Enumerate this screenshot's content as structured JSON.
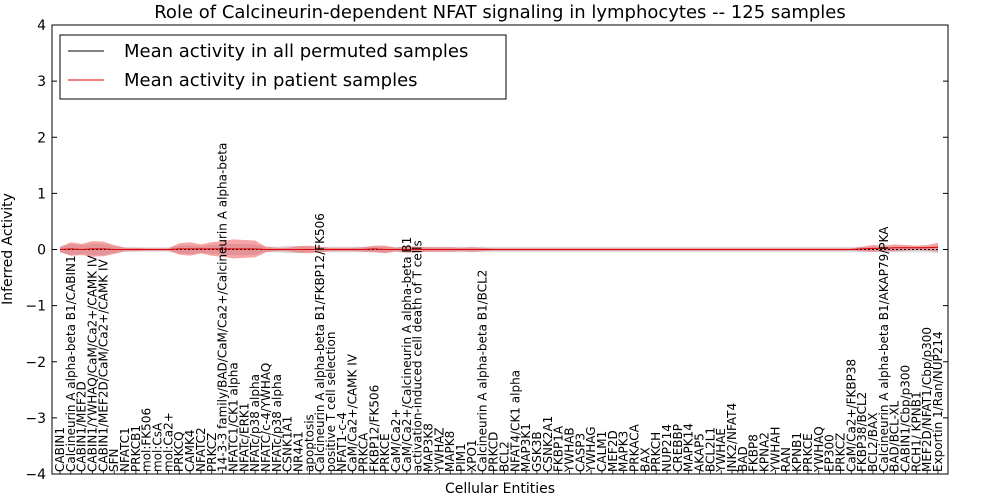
{
  "chart_data": {
    "type": "line",
    "title": "Role of Calcineurin-dependent NFAT signaling in lymphocytes -- 125 samples",
    "xlabel": "Cellular Entities",
    "ylabel": "Inferred Activity",
    "ylim": [
      -4,
      4
    ],
    "yticks": [
      "−4",
      "−3",
      "−2",
      "−1",
      "0",
      "1",
      "2",
      "3",
      "4"
    ],
    "grid": false,
    "legend": {
      "placement": "top-left",
      "entries": [
        {
          "label": "Mean activity in all permuted samples",
          "color": "#000000"
        },
        {
          "label": "Mean activity in patient samples",
          "color": "#e00000"
        }
      ]
    },
    "categories": [
      "CABIN1",
      "Calcineurin A alpha-beta B1/CABIN1",
      "CABIN1/MEF2D",
      "CABIN1/YWHAQ/CaM/Ca2+/CAMK IV",
      "CABIN1/MEF2D/CaM/Ca2+/CAMK IV",
      "SFN",
      "NFATC1",
      "PRKCB1",
      "mol:FK506",
      "mol:CsA",
      "mol:Ca2+",
      "PRKCQ",
      "CAMK4",
      "NFATC2",
      "PRKCZ",
      "14-3-3 family/BAD/CaM/Ca2+/Calcineurin A alpha-beta",
      "NFATC1/CK1 alpha",
      "NFATc/ERK1",
      "NFATc/p38 alpha",
      "NFATC/c-4/YWHAQ",
      "NFATc/p38 alpha",
      "CSNK1A1",
      "NR4A1",
      "apoptosis",
      "Calcineurin A alpha-beta B1/FKBP12/FK506",
      "positive T cell selection",
      "NFAT1-c-4",
      "CaM/Ca2+/CAMK IV",
      "PRKCA",
      "FKBP12/FK506",
      "PRKCE",
      "CaM/Ca2+",
      "CaM/Ca2+/Calcineurin A alpha-beta B1",
      "activation-induced cell death of T cells",
      "MAP3K8",
      "YWHAZ",
      "MAPK8",
      "PIM1",
      "XPO1",
      "Calcineurin A alpha-beta B1/BCL2",
      "PRKCD",
      "BCL2",
      "NFAT4/CK1 alpha",
      "MAP3K1",
      "GSK3B",
      "CSNK2A1",
      "FKBP1A",
      "YWHAB",
      "CASP3",
      "YWHAG",
      "CALM1",
      "MEF2D",
      "MAPK3",
      "PRKACA",
      "BAX",
      "PRKCH",
      "NUP214",
      "CREBBP",
      "MAPK14",
      "AKAP5",
      "BCL2L1",
      "YWHAE",
      "JNK2/NFAT4",
      "BAD",
      "FKBP8",
      "KPNA2",
      "YWHAH",
      "RAN",
      "KPNB1",
      "PRKCE",
      "YWHAQ",
      "EP300",
      "PRKCZ",
      "CaM/Ca2+/FKBP38",
      "FKBP38/BCL2",
      "BCL2/BAX",
      "Calcineurin A alpha-beta B1/AKAP79/PKA",
      "BAD/BCL-XL",
      "CABIN1/Cbp/p300",
      "RCH1/ KPNB1",
      "MEF2D/NFAT1/Cbp/p300",
      "Exportin 1/Ran/NUP214"
    ],
    "patient_mean": [
      0.0,
      0.01,
      0.0,
      0.01,
      0.01,
      0.0,
      0.0,
      0.0,
      0.0,
      0.0,
      0.0,
      0.01,
      0.01,
      0.01,
      0.01,
      0.01,
      0.01,
      0.01,
      0.01,
      0.0,
      0.0,
      0.0,
      0.0,
      0.0,
      0.0,
      0.0,
      0.0,
      0.0,
      0.0,
      0.01,
      0.0,
      0.0,
      0.0,
      0.0,
      0.0,
      0.0,
      0.0,
      0.0,
      0.0,
      0.0,
      0.0,
      0.0,
      0.0,
      0.0,
      0.0,
      0.0,
      0.0,
      0.0,
      0.0,
      0.0,
      0.0,
      0.0,
      0.0,
      0.0,
      0.0,
      0.0,
      0.0,
      0.0,
      0.0,
      0.0,
      0.0,
      0.0,
      0.0,
      0.0,
      0.0,
      0.0,
      0.0,
      0.0,
      0.0,
      0.0,
      0.0,
      0.0,
      0.0,
      0.0,
      0.01,
      0.02,
      0.02,
      0.03,
      0.03,
      0.03,
      0.03,
      0.04,
      0.04
    ],
    "patient_band": [
      0.04,
      0.12,
      0.1,
      0.14,
      0.13,
      0.08,
      0.03,
      0.03,
      0.02,
      0.02,
      0.02,
      0.1,
      0.12,
      0.08,
      0.12,
      0.14,
      0.17,
      0.16,
      0.15,
      0.05,
      0.03,
      0.03,
      0.06,
      0.07,
      0.05,
      0.03,
      0.03,
      0.03,
      0.04,
      0.06,
      0.07,
      0.03,
      0.06,
      0.05,
      0.04,
      0.04,
      0.04,
      0.03,
      0.04,
      0.03,
      0.02,
      0.02,
      0.02,
      0.02,
      0.02,
      0.02,
      0.02,
      0.02,
      0.02,
      0.02,
      0.02,
      0.02,
      0.02,
      0.02,
      0.02,
      0.02,
      0.02,
      0.02,
      0.02,
      0.02,
      0.02,
      0.02,
      0.02,
      0.02,
      0.02,
      0.02,
      0.02,
      0.02,
      0.02,
      0.02,
      0.02,
      0.02,
      0.02,
      0.02,
      0.04,
      0.06,
      0.05,
      0.06,
      0.05,
      0.04,
      0.05,
      0.08,
      0.07
    ],
    "permuted_mean": [
      0.0,
      0.0,
      0.0,
      0.0,
      0.0,
      0.0,
      0.0,
      0.0,
      0.0,
      0.0,
      0.0,
      0.0,
      0.0,
      0.0,
      0.0,
      0.0,
      0.0,
      0.0,
      0.0,
      0.0,
      0.0,
      0.0,
      0.0,
      0.0,
      0.0,
      0.0,
      0.0,
      0.0,
      0.0,
      0.0,
      0.0,
      0.0,
      0.0,
      0.0,
      0.0,
      0.0,
      0.0,
      0.0,
      0.0,
      0.0,
      0.0,
      0.0,
      0.0,
      0.0,
      0.0,
      0.0,
      0.0,
      0.0,
      0.0,
      0.0,
      0.0,
      0.0,
      0.0,
      0.0,
      0.0,
      0.0,
      0.0,
      0.0,
      0.0,
      0.0,
      0.0,
      0.0,
      0.0,
      0.0,
      0.0,
      0.0,
      0.0,
      0.0,
      0.0,
      0.0,
      0.0,
      0.0,
      0.0,
      0.0,
      0.0,
      0.0,
      0.0,
      0.0,
      0.0,
      0.0,
      0.0,
      0.0,
      0.0
    ],
    "permuted_band": [
      0.06,
      0.1,
      0.08,
      0.1,
      0.1,
      0.06,
      0.04,
      0.04,
      0.04,
      0.04,
      0.04,
      0.07,
      0.08,
      0.06,
      0.08,
      0.09,
      0.1,
      0.1,
      0.09,
      0.05,
      0.05,
      0.07,
      0.06,
      0.05,
      0.05,
      0.05,
      0.05,
      0.05,
      0.05,
      0.05,
      0.05,
      0.05,
      0.05,
      0.05,
      0.05,
      0.05,
      0.05,
      0.05,
      0.05,
      0.05,
      0.05,
      0.05,
      0.05,
      0.05,
      0.05,
      0.05,
      0.05,
      0.05,
      0.05,
      0.05,
      0.05,
      0.05,
      0.05,
      0.05,
      0.05,
      0.05,
      0.05,
      0.05,
      0.05,
      0.05,
      0.05,
      0.05,
      0.05,
      0.05,
      0.05,
      0.05,
      0.05,
      0.05,
      0.05,
      0.05,
      0.05,
      0.05,
      0.05,
      0.05,
      0.05,
      0.05,
      0.05,
      0.05,
      0.05,
      0.05,
      0.05,
      0.07,
      0.07
    ]
  }
}
